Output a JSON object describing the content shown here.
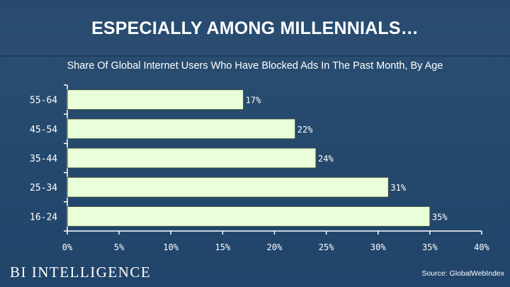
{
  "header": {
    "title": "ESPECIALLY AMONG MILLENNIALS…"
  },
  "footer": {
    "brand": "BI INTELLIGENCE",
    "source": "Source: GlobalWebIndex"
  },
  "colors": {
    "background": "#24476a",
    "bar_fill": "#e9ffd9",
    "bar_stroke": "#3b4a3c",
    "text": "#ffffff"
  },
  "chart_data": {
    "type": "bar",
    "orientation": "horizontal",
    "title": "Share Of Global Internet Users Who Have Blocked Ads In The Past Month, By Age",
    "categories": [
      "55-64",
      "45-54",
      "35-44",
      "25-34",
      "16-24"
    ],
    "values": [
      17,
      22,
      24,
      31,
      35
    ],
    "value_labels": [
      "17%",
      "22%",
      "24%",
      "31%",
      "35%"
    ],
    "x_ticks": [
      "0%",
      "5%",
      "10%",
      "15%",
      "20%",
      "25%",
      "30%",
      "35%",
      "40%"
    ],
    "xlim": [
      0,
      40
    ],
    "xlabel": "",
    "ylabel": "",
    "grid": false,
    "legend": "none"
  }
}
